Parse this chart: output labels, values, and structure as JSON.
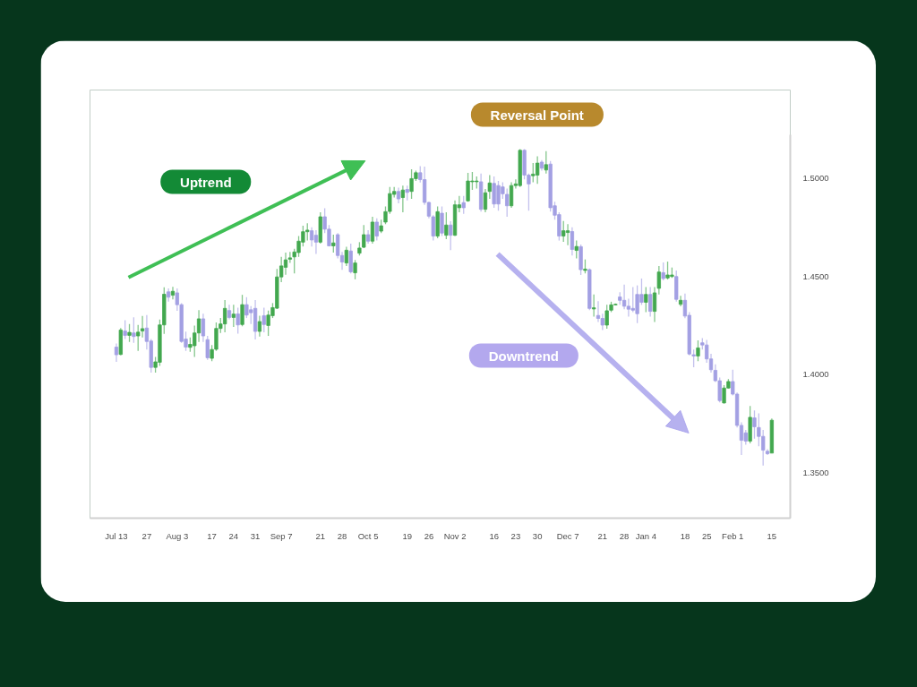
{
  "chart_data": {
    "type": "candlestick",
    "categories": [
      "Jul 13",
      null,
      null,
      null,
      null,
      null,
      null,
      "27",
      null,
      null,
      null,
      null,
      null,
      null,
      "Aug 3",
      null,
      null,
      null,
      null,
      null,
      null,
      null,
      "17",
      null,
      null,
      null,
      null,
      "24",
      null,
      null,
      null,
      null,
      "31",
      null,
      null,
      null,
      null,
      null,
      "Sep 7",
      null,
      null,
      null,
      null,
      null,
      null,
      null,
      null,
      "21",
      null,
      null,
      null,
      null,
      "28",
      null,
      null,
      null,
      null,
      null,
      "Oct 5",
      null,
      null,
      null,
      null,
      null,
      null,
      null,
      null,
      "19",
      null,
      null,
      null,
      null,
      "26",
      null,
      null,
      null,
      null,
      null,
      "Nov 2",
      null,
      null,
      null,
      null,
      null,
      null,
      null,
      null,
      "16",
      null,
      null,
      null,
      null,
      "23",
      null,
      null,
      null,
      null,
      "30",
      null,
      null,
      null,
      null,
      null,
      null,
      "Dec 7",
      null,
      null,
      null,
      null,
      null,
      null,
      null,
      "21",
      null,
      null,
      null,
      null,
      "28",
      null,
      null,
      null,
      null,
      "Jan 4",
      null,
      null,
      null,
      null,
      null,
      null,
      null,
      null,
      "18",
      null,
      null,
      null,
      null,
      "25",
      null,
      null,
      null,
      null,
      null,
      "Feb 1",
      null,
      null,
      null,
      null,
      null,
      null,
      null,
      null,
      "15"
    ],
    "ohlc": [
      [
        1.414,
        1.4159,
        1.4065,
        1.4101
      ],
      [
        1.4103,
        1.4237,
        1.4098,
        1.4227
      ],
      [
        1.4222,
        1.4277,
        1.4181,
        1.42
      ],
      [
        1.42,
        1.4257,
        1.4166,
        1.4215
      ],
      [
        1.4212,
        1.4292,
        1.4162,
        1.4194
      ],
      [
        1.4197,
        1.4253,
        1.4121,
        1.4216
      ],
      [
        1.4222,
        1.4298,
        1.4189,
        1.4234
      ],
      [
        1.4237,
        1.4303,
        1.4128,
        1.4169
      ],
      [
        1.4171,
        1.4181,
        1.401,
        1.4037
      ],
      [
        1.4037,
        1.409,
        1.401,
        1.4065
      ],
      [
        1.4063,
        1.428,
        1.4045,
        1.4253
      ],
      [
        1.4253,
        1.4444,
        1.4207,
        1.4409
      ],
      [
        1.4421,
        1.4439,
        1.4371,
        1.4394
      ],
      [
        1.4404,
        1.4447,
        1.4383,
        1.4424
      ],
      [
        1.4416,
        1.4439,
        1.4325,
        1.4356
      ],
      [
        1.4356,
        1.4363,
        1.4162,
        1.4169
      ],
      [
        1.4181,
        1.4219,
        1.4121,
        1.414
      ],
      [
        1.4139,
        1.4189,
        1.4116,
        1.4154
      ],
      [
        1.4147,
        1.425,
        1.409,
        1.4212
      ],
      [
        1.4212,
        1.4328,
        1.4166,
        1.4284
      ],
      [
        1.4284,
        1.431,
        1.4166,
        1.4197
      ],
      [
        1.4178,
        1.4197,
        1.4075,
        1.4086
      ],
      [
        1.4083,
        1.4151,
        1.4068,
        1.4128
      ],
      [
        1.4129,
        1.4265,
        1.4121,
        1.4235
      ],
      [
        1.4235,
        1.4288,
        1.4212,
        1.4258
      ],
      [
        1.4258,
        1.4379,
        1.4215,
        1.4337
      ],
      [
        1.4326,
        1.4356,
        1.4281,
        1.4291
      ],
      [
        1.4291,
        1.4356,
        1.4243,
        1.4308
      ],
      [
        1.4309,
        1.4341,
        1.4209,
        1.4253
      ],
      [
        1.4255,
        1.4406,
        1.4246,
        1.4356
      ],
      [
        1.4356,
        1.4394,
        1.4288,
        1.4303
      ],
      [
        1.433,
        1.4349,
        1.4258,
        1.4315
      ],
      [
        1.4337,
        1.4379,
        1.4179,
        1.422
      ],
      [
        1.422,
        1.43,
        1.4194,
        1.427
      ],
      [
        1.43,
        1.4341,
        1.4215,
        1.4255
      ],
      [
        1.425,
        1.4326,
        1.4197,
        1.4303
      ],
      [
        1.43,
        1.4364,
        1.4288,
        1.4341
      ],
      [
        1.4338,
        1.4538,
        1.4334,
        1.4497
      ],
      [
        1.4497,
        1.4599,
        1.447,
        1.4553
      ],
      [
        1.4546,
        1.4621,
        1.4508,
        1.4584
      ],
      [
        1.4587,
        1.4624,
        1.4568,
        1.4594
      ],
      [
        1.4599,
        1.464,
        1.4515,
        1.4624
      ],
      [
        1.4621,
        1.4705,
        1.4599,
        1.4679
      ],
      [
        1.4674,
        1.4758,
        1.4652,
        1.4727
      ],
      [
        1.4727,
        1.477,
        1.4682,
        1.4735
      ],
      [
        1.4732,
        1.475,
        1.4652,
        1.4685
      ],
      [
        1.4709,
        1.4735,
        1.4614,
        1.4674
      ],
      [
        1.4674,
        1.4826,
        1.4667,
        1.4803
      ],
      [
        1.4803,
        1.4846,
        1.472,
        1.474
      ],
      [
        1.474,
        1.4761,
        1.4652,
        1.4655
      ],
      [
        1.4655,
        1.4712,
        1.4621,
        1.467
      ],
      [
        1.4712,
        1.472,
        1.4591,
        1.4606
      ],
      [
        1.4606,
        1.4624,
        1.4533,
        1.4573
      ],
      [
        1.4568,
        1.4651,
        1.4553,
        1.4633
      ],
      [
        1.4629,
        1.4667,
        1.4515,
        1.4523
      ],
      [
        1.4518,
        1.4583,
        1.4485,
        1.4568
      ],
      [
        1.4618,
        1.4674,
        1.4606,
        1.4644
      ],
      [
        1.4648,
        1.4761,
        1.4644,
        1.4712
      ],
      [
        1.4712,
        1.4735,
        1.4667,
        1.4679
      ],
      [
        1.4679,
        1.4803,
        1.4667,
        1.4776
      ],
      [
        1.4776,
        1.4795,
        1.4682,
        1.4705
      ],
      [
        1.473,
        1.4788,
        1.472,
        1.4757
      ],
      [
        1.4776,
        1.4856,
        1.4765,
        1.4829
      ],
      [
        1.483,
        1.4955,
        1.4818,
        1.4921
      ],
      [
        1.4917,
        1.4955,
        1.4901,
        1.4932
      ],
      [
        1.4932,
        1.4951,
        1.4871,
        1.4894
      ],
      [
        1.4901,
        1.4962,
        1.4826,
        1.4939
      ],
      [
        1.4942,
        1.4962,
        1.4886,
        1.4927
      ],
      [
        1.4932,
        1.5045,
        1.4894,
        1.4997
      ],
      [
        1.4997,
        1.5038,
        1.4985,
        1.5027
      ],
      [
        1.5027,
        1.5061,
        1.4977,
        1.4992
      ],
      [
        1.4992,
        1.5058,
        1.4864,
        1.4876
      ],
      [
        1.4876,
        1.4879,
        1.4795,
        1.4806
      ],
      [
        1.4803,
        1.4811,
        1.4682,
        1.4705
      ],
      [
        1.4705,
        1.4856,
        1.4694,
        1.4829
      ],
      [
        1.4821,
        1.4856,
        1.4705,
        1.472
      ],
      [
        1.4709,
        1.4826,
        1.4689,
        1.4761
      ],
      [
        1.4761,
        1.478,
        1.4633,
        1.4709
      ],
      [
        1.4709,
        1.4886,
        1.4705,
        1.4864
      ],
      [
        1.4849,
        1.4909,
        1.4826,
        1.4864
      ],
      [
        1.4875,
        1.4909,
        1.4818,
        1.4849
      ],
      [
        1.4884,
        1.5026,
        1.4879,
        1.4985
      ],
      [
        1.4981,
        1.5031,
        1.494,
        1.4985
      ],
      [
        1.4981,
        1.5008,
        1.4947,
        1.4985
      ],
      [
        1.4981,
        1.5023,
        1.4829,
        1.4841
      ],
      [
        1.4841,
        1.4944,
        1.4826,
        1.4925
      ],
      [
        1.4932,
        1.5015,
        1.4894,
        1.4975
      ],
      [
        1.4973,
        1.5008,
        1.4849,
        1.4868
      ],
      [
        1.4962,
        1.4985,
        1.4834,
        1.4868
      ],
      [
        1.4955,
        1.4978,
        1.4894,
        1.492
      ],
      [
        1.4917,
        1.4947,
        1.4803,
        1.4859
      ],
      [
        1.4859,
        1.4978,
        1.4849,
        1.4962
      ],
      [
        1.4962,
        1.4993,
        1.4947,
        1.497
      ],
      [
        1.4962,
        1.5147,
        1.4955,
        1.5141
      ],
      [
        1.5141,
        1.5147,
        1.4993,
        1.5015
      ],
      [
        1.5015,
        1.5023,
        1.4834,
        1.497
      ],
      [
        1.5012,
        1.5076,
        1.4978,
        1.502
      ],
      [
        1.5015,
        1.5111,
        1.497,
        1.5076
      ],
      [
        1.5081,
        1.5091,
        1.5038,
        1.505
      ],
      [
        1.5041,
        1.5137,
        1.5023,
        1.5068
      ],
      [
        1.5071,
        1.5087,
        1.4829,
        1.4849
      ],
      [
        1.4859,
        1.4879,
        1.4788,
        1.4811
      ],
      [
        1.4814,
        1.4826,
        1.4682,
        1.4705
      ],
      [
        1.4705,
        1.4781,
        1.4675,
        1.4732
      ],
      [
        1.4723,
        1.4765,
        1.4659,
        1.4732
      ],
      [
        1.4728,
        1.475,
        1.4606,
        1.4637
      ],
      [
        1.4632,
        1.4682,
        1.4591,
        1.4652
      ],
      [
        1.4651,
        1.4662,
        1.4507,
        1.4534
      ],
      [
        1.453,
        1.4586,
        1.4515,
        1.4537
      ],
      [
        1.4534,
        1.454,
        1.4328,
        1.4337
      ],
      [
        1.4334,
        1.4408,
        1.4295,
        1.434
      ],
      [
        1.4301,
        1.4374,
        1.4268,
        1.4286
      ],
      [
        1.4286,
        1.431,
        1.4227,
        1.4252
      ],
      [
        1.4252,
        1.4355,
        1.4234,
        1.4325
      ],
      [
        1.4328,
        1.4371,
        1.4318,
        1.4355
      ],
      [
        1.4355,
        1.4362,
        1.4352,
        1.4358
      ],
      [
        1.4395,
        1.4419,
        1.4355,
        1.4378
      ],
      [
        1.4378,
        1.4458,
        1.4333,
        1.4348
      ],
      [
        1.4348,
        1.4386,
        1.4295,
        1.4333
      ],
      [
        1.4337,
        1.4446,
        1.4318,
        1.4328
      ],
      [
        1.4408,
        1.4454,
        1.4262,
        1.431
      ],
      [
        1.4408,
        1.4489,
        1.4355,
        1.4368
      ],
      [
        1.4368,
        1.4446,
        1.4318,
        1.4408
      ],
      [
        1.4408,
        1.4446,
        1.4295,
        1.4322
      ],
      [
        1.4322,
        1.4446,
        1.4268,
        1.4416
      ],
      [
        1.4439,
        1.4552,
        1.4408,
        1.4522
      ],
      [
        1.4519,
        1.4571,
        1.448,
        1.4489
      ],
      [
        1.4492,
        1.4575,
        1.4484,
        1.4507
      ],
      [
        1.4499,
        1.4545,
        1.4492,
        1.4507
      ],
      [
        1.4499,
        1.453,
        1.4371,
        1.4383
      ],
      [
        1.4358,
        1.4401,
        1.4348,
        1.4378
      ],
      [
        1.4378,
        1.4413,
        1.4287,
        1.4298
      ],
      [
        1.4302,
        1.4318,
        1.4098,
        1.4105
      ],
      [
        1.4101,
        1.4128,
        1.4038,
        1.4095
      ],
      [
        1.4095,
        1.4174,
        1.4068,
        1.4136
      ],
      [
        1.4162,
        1.4186,
        1.4128,
        1.4151
      ],
      [
        1.4151,
        1.4177,
        1.406,
        1.408
      ],
      [
        1.408,
        1.4106,
        1.401,
        1.4025
      ],
      [
        1.4022,
        1.4053,
        1.3962,
        1.3969
      ],
      [
        1.3969,
        1.3985,
        1.3859,
        1.3868
      ],
      [
        1.3856,
        1.3947,
        1.3853,
        1.3932
      ],
      [
        1.3932,
        1.3977,
        1.3929,
        1.3965
      ],
      [
        1.3965,
        1.4025,
        1.3894,
        1.3901
      ],
      [
        1.3901,
        1.3909,
        1.3731,
        1.3742
      ],
      [
        1.3742,
        1.3757,
        1.3591,
        1.3666
      ],
      [
        1.3704,
        1.3719,
        1.3644,
        1.3662
      ],
      [
        1.3662,
        1.3841,
        1.3651,
        1.3783
      ],
      [
        1.378,
        1.3818,
        1.3674,
        1.3735
      ],
      [
        1.3731,
        1.3803,
        1.3636,
        1.3686
      ],
      [
        1.3686,
        1.3719,
        1.3538,
        1.3616
      ],
      [
        1.361,
        1.3621,
        1.3591,
        1.3598
      ],
      [
        1.3601,
        1.3777,
        1.3601,
        1.3768
      ]
    ],
    "colors": [
      "#a3a0e3",
      "#43a84f",
      "#a3a0e3",
      "#43a84f",
      "#a3a0e3",
      "#43a84f",
      "#43a84f",
      "#a3a0e3",
      "#a3a0e3",
      "#43a84f",
      "#43a84f",
      "#43a84f",
      "#a3a0e3",
      "#43a84f",
      "#a3a0e3",
      "#a3a0e3",
      "#a3a0e3",
      "#43a84f",
      "#43a84f",
      "#43a84f",
      "#a3a0e3",
      "#a3a0e3",
      "#43a84f",
      "#43a84f",
      "#43a84f",
      "#43a84f",
      "#a3a0e3",
      "#43a84f",
      "#a3a0e3",
      "#43a84f",
      "#a3a0e3",
      "#a3a0e3",
      "#a3a0e3",
      "#43a84f",
      "#a3a0e3",
      "#43a84f",
      "#43a84f",
      "#43a84f",
      "#43a84f",
      "#43a84f",
      "#43a84f",
      "#43a84f",
      "#43a84f",
      "#43a84f",
      "#43a84f",
      "#a3a0e3",
      "#a3a0e3",
      "#43a84f",
      "#a3a0e3",
      "#a3a0e3",
      "#43a84f",
      "#a3a0e3",
      "#a3a0e3",
      "#43a84f",
      "#a3a0e3",
      "#43a84f",
      "#43a84f",
      "#43a84f",
      "#a3a0e3",
      "#43a84f",
      "#a3a0e3",
      "#43a84f",
      "#43a84f",
      "#43a84f",
      "#43a84f",
      "#a3a0e3",
      "#43a84f",
      "#a3a0e3",
      "#43a84f",
      "#43a84f",
      "#a3a0e3",
      "#a3a0e3",
      "#a3a0e3",
      "#a3a0e3",
      "#43a84f",
      "#a3a0e3",
      "#43a84f",
      "#a3a0e3",
      "#43a84f",
      "#43a84f",
      "#a3a0e3",
      "#43a84f",
      "#43a84f",
      "#43a84f",
      "#a3a0e3",
      "#43a84f",
      "#43a84f",
      "#a3a0e3",
      "#a3a0e3",
      "#a3a0e3",
      "#a3a0e3",
      "#43a84f",
      "#43a84f",
      "#43a84f",
      "#a3a0e3",
      "#a3a0e3",
      "#43a84f",
      "#43a84f",
      "#a3a0e3",
      "#43a84f",
      "#a3a0e3",
      "#a3a0e3",
      "#a3a0e3",
      "#43a84f",
      "#43a84f",
      "#a3a0e3",
      "#43a84f",
      "#a3a0e3",
      "#43a84f",
      "#a3a0e3",
      "#43a84f",
      "#a3a0e3",
      "#a3a0e3",
      "#43a84f",
      "#43a84f",
      "#43a84f",
      "#a3a0e3",
      "#a3a0e3",
      "#a3a0e3",
      "#a3a0e3",
      "#a3a0e3",
      "#a3a0e3",
      "#43a84f",
      "#a3a0e3",
      "#43a84f",
      "#43a84f",
      "#a3a0e3",
      "#43a84f",
      "#43a84f",
      "#a3a0e3",
      "#43a84f",
      "#a3a0e3",
      "#a3a0e3",
      "#a3a0e3",
      "#43a84f",
      "#a3a0e3",
      "#a3a0e3",
      "#a3a0e3",
      "#a3a0e3",
      "#a3a0e3",
      "#43a84f",
      "#43a84f",
      "#a3a0e3",
      "#a3a0e3",
      "#a3a0e3",
      "#a3a0e3",
      "#43a84f",
      "#a3a0e3",
      "#a3a0e3",
      "#a3a0e3",
      "#a3a0e3",
      "#43a84f"
    ],
    "ylim": [
      1.327,
      1.522
    ],
    "yticks": [
      {
        "value": 1.35,
        "label": "1.3500"
      },
      {
        "value": 1.4,
        "label": "1.4000"
      },
      {
        "value": 1.45,
        "label": "1.4500"
      },
      {
        "value": 1.5,
        "label": "1.5000"
      }
    ],
    "annotations": [
      "Reversal Point",
      "Uptrend",
      "Downtrend"
    ]
  }
}
